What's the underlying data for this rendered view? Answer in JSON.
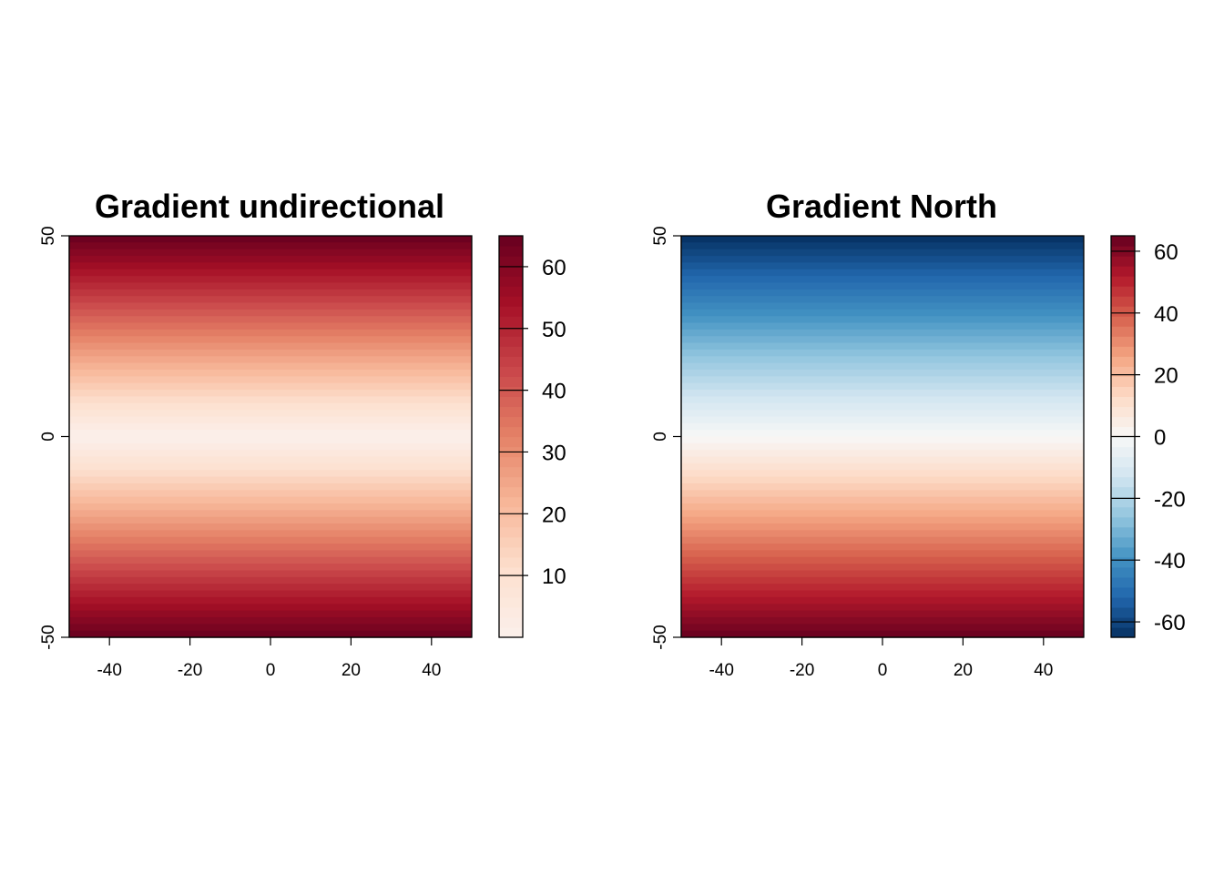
{
  "chart_data": [
    {
      "type": "heatmap",
      "title": "Gradient undirectional",
      "xlabel": "",
      "ylabel": "",
      "xlim": [
        -50,
        50
      ],
      "ylim": [
        -50,
        50
      ],
      "x_ticks": [
        -40,
        -20,
        0,
        20,
        40
      ],
      "y_ticks": [
        -50,
        0,
        50
      ],
      "field": "absolute latitude: value = |y| (constant along x)",
      "value_range": [
        0,
        65
      ],
      "colorbar": {
        "ticks": [
          10,
          20,
          30,
          40,
          50,
          60
        ],
        "range": [
          0,
          65
        ],
        "colors": [
          "#fbf0eb",
          "#fde0cf",
          "#f7b799",
          "#e58267",
          "#c9474a",
          "#a50f26",
          "#67001f"
        ]
      }
    },
    {
      "type": "heatmap",
      "title": "Gradient North",
      "xlabel": "",
      "ylabel": "",
      "xlim": [
        -50,
        50
      ],
      "ylim": [
        -50,
        50
      ],
      "x_ticks": [
        -40,
        -20,
        0,
        20,
        40
      ],
      "y_ticks": [
        -50,
        0,
        50
      ],
      "field": "northward gradient: value = -y * 1.3 (constant along x)",
      "value_range": [
        -65,
        65
      ],
      "colorbar": {
        "ticks": [
          -60,
          -40,
          -20,
          0,
          20,
          40,
          60
        ],
        "range": [
          -65,
          65
        ],
        "colors": [
          "#053061",
          "#2166ac",
          "#4393c3",
          "#92c5de",
          "#d1e5f0",
          "#f7f7f7",
          "#fddbc7",
          "#f4a582",
          "#d6604d",
          "#b2182b",
          "#67001f"
        ]
      }
    }
  ]
}
